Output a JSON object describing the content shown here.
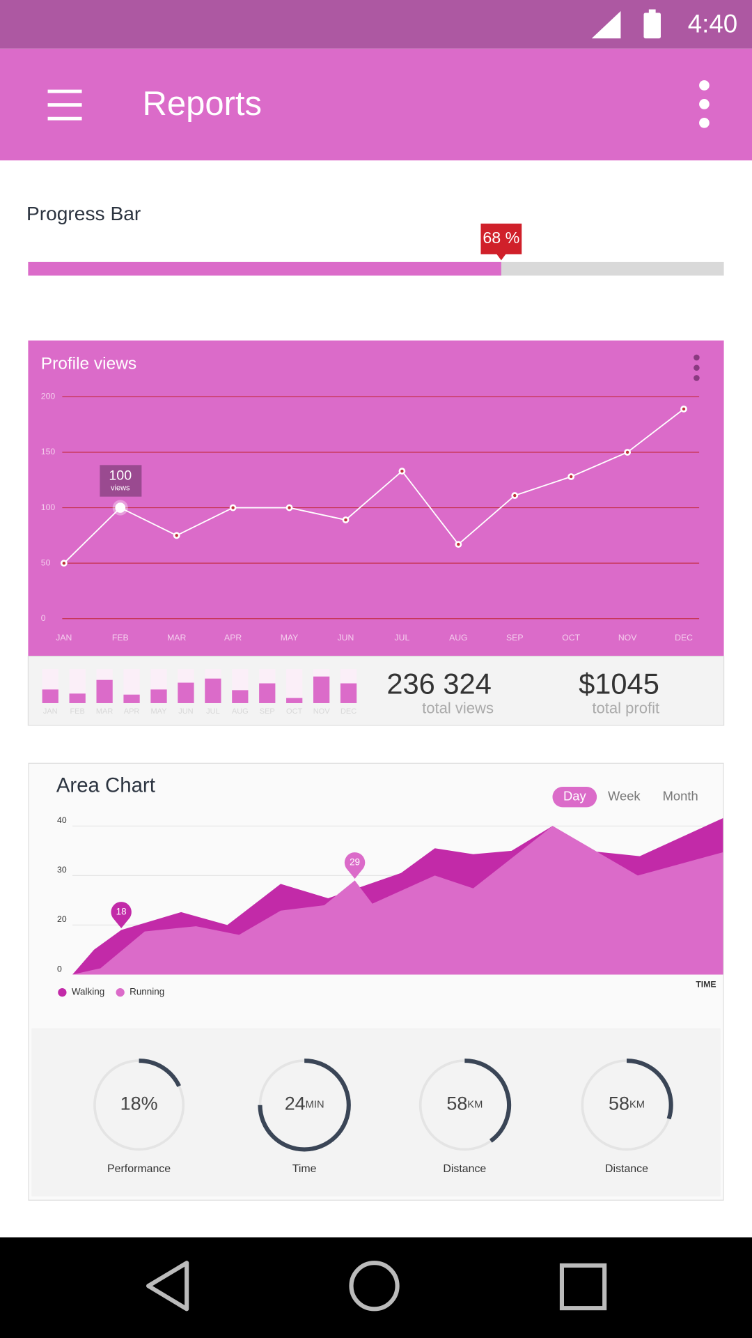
{
  "status_bar": {
    "time": "4:40"
  },
  "app_bar": {
    "title": "Reports"
  },
  "progress": {
    "title": "Progress Bar",
    "value": 68,
    "value_label": "68 %",
    "max": 100
  },
  "profile_views": {
    "type": "line",
    "title": "Profile views",
    "categories": [
      "JAN",
      "FEB",
      "MAR",
      "APR",
      "MAY",
      "JUN",
      "JUL",
      "AUG",
      "SEP",
      "OCT",
      "NOV",
      "DEC"
    ],
    "values": [
      50,
      100,
      75,
      100,
      100,
      89,
      133,
      67,
      111,
      128,
      150,
      189
    ],
    "ylim": [
      0,
      200
    ],
    "yticks": [
      0,
      50,
      100,
      150,
      200
    ],
    "grid": true,
    "color": "#ffffff",
    "tooltip_unit": "views"
  },
  "monthly_bars": {
    "type": "bar",
    "categories": [
      "JAN",
      "FEB",
      "MAR",
      "APR",
      "MAY",
      "JUN",
      "JUL",
      "AUG",
      "SEP",
      "OCT",
      "NOV",
      "DEC"
    ],
    "values": [
      40,
      28,
      68,
      25,
      40,
      60,
      72,
      38,
      58,
      15,
      78,
      58
    ],
    "ylim": [
      0,
      100
    ],
    "color": "#db6bc9"
  },
  "summary": [
    {
      "value": "236 324",
      "label": "total views"
    },
    {
      "value": "$1045",
      "label": "total profit"
    }
  ],
  "area_chart": {
    "type": "area",
    "title": "Area Chart",
    "tabs": [
      "Day",
      "Week",
      "Month"
    ],
    "x_label": "TIME",
    "xlim": [
      0,
      100
    ],
    "ylim": [
      0,
      40
    ],
    "yticks": [
      0,
      20,
      30,
      40
    ],
    "grid": true,
    "series": [
      {
        "name": "Walking",
        "color": "#c22aa8",
        "x": [
          0,
          3.3,
          7.5,
          16.7,
          23.8,
          32,
          39.3,
          50.5,
          55.7,
          61.6,
          67.5,
          73.8,
          80.6,
          87.2,
          100
        ],
        "values": [
          0,
          10,
          18,
          22.6,
          20,
          28.3,
          25.4,
          30.5,
          35.5,
          34.3,
          35,
          40,
          34.8,
          33.9,
          41.6
        ]
      },
      {
        "name": "Running",
        "color": "#db6bc9",
        "x": [
          0,
          4.3,
          11.1,
          19,
          25.6,
          32,
          38.7,
          43.4,
          46.1,
          55.7,
          61.6,
          73.8,
          86.9,
          100
        ],
        "values": [
          0,
          2.5,
          17.4,
          19.5,
          16,
          22.9,
          24,
          29,
          24.3,
          30,
          27.4,
          40,
          30,
          34.7
        ]
      }
    ]
  },
  "gauges": [
    {
      "value": 18,
      "unit": "%",
      "label": "Performance",
      "fill": 18
    },
    {
      "value": 24,
      "unit": "MIN",
      "label": "Time",
      "fill": 75
    },
    {
      "value": 58,
      "unit": "KM",
      "label": "Distance",
      "fill": 40
    },
    {
      "value": 58,
      "unit": "KM",
      "label": "Distance",
      "fill": 30
    }
  ]
}
